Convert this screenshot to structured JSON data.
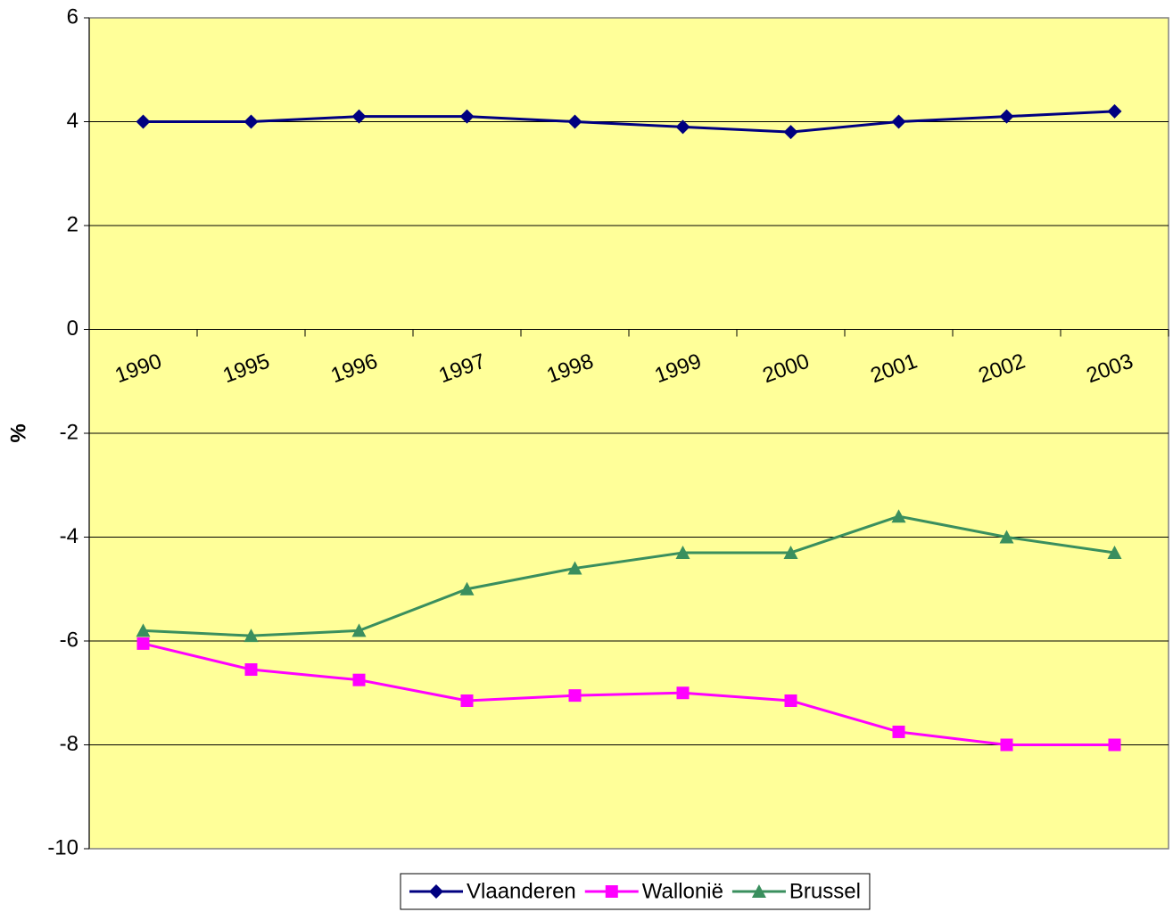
{
  "chart_data": {
    "type": "line",
    "y_label": "%",
    "categories": [
      "1990",
      "1995",
      "1996",
      "1997",
      "1998",
      "1999",
      "2000",
      "2001",
      "2002",
      "2003"
    ],
    "series": [
      {
        "name": "Vlaanderen",
        "color": "#000080",
        "marker": "diamond",
        "values": [
          4,
          4,
          4.1,
          4.1,
          4,
          3.9,
          3.8,
          4,
          4.1,
          4.2
        ]
      },
      {
        "name": "Wallonië",
        "color": "#ff00ff",
        "marker": "square",
        "values": [
          -6.05,
          -6.55,
          -6.75,
          -7.15,
          -7.05,
          -7.0,
          -7.15,
          -7.75,
          -8,
          -8
        ]
      },
      {
        "name": "Brussel",
        "color": "#3a8f5e",
        "marker": "triangle",
        "values": [
          -5.8,
          -5.9,
          -5.8,
          -5.0,
          -4.6,
          -4.3,
          -4.3,
          -3.6,
          -4.0,
          -4.3
        ]
      }
    ],
    "ylim": [
      -10,
      6
    ],
    "yticks": [
      -10,
      -8,
      -6,
      -4,
      -2,
      0,
      2,
      4,
      6
    ],
    "grid": true,
    "legend": "bottom"
  }
}
